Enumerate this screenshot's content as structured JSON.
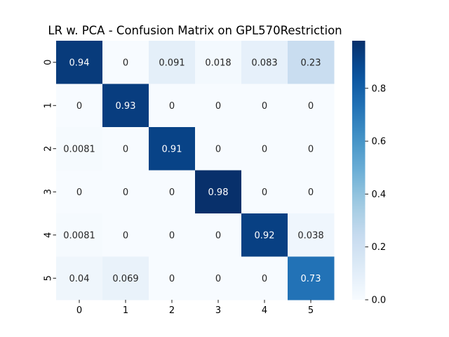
{
  "chart_data": {
    "type": "heatmap",
    "title": "LR w. PCA - Confusion Matrix on GPL570Restriction",
    "xlabel": "",
    "ylabel": "",
    "x_categories": [
      "0",
      "1",
      "2",
      "3",
      "4",
      "5"
    ],
    "y_categories": [
      "0",
      "1",
      "2",
      "3",
      "4",
      "5"
    ],
    "values": [
      [
        0.94,
        0,
        0.091,
        0.018,
        0.083,
        0.23
      ],
      [
        0,
        0.93,
        0,
        0,
        0,
        0
      ],
      [
        0.0081,
        0,
        0.91,
        0,
        0,
        0
      ],
      [
        0,
        0,
        0,
        0.98,
        0,
        0
      ],
      [
        0.0081,
        0,
        0,
        0,
        0.92,
        0.038
      ],
      [
        0.04,
        0.069,
        0,
        0,
        0,
        0.73
      ]
    ],
    "cell_labels": [
      [
        "0.94",
        "0",
        "0.091",
        "0.018",
        "0.083",
        "0.23"
      ],
      [
        "0",
        "0.93",
        "0",
        "0",
        "0",
        "0"
      ],
      [
        "0.0081",
        "0",
        "0.91",
        "0",
        "0",
        "0"
      ],
      [
        "0",
        "0",
        "0",
        "0.98",
        "0",
        "0"
      ],
      [
        "0.0081",
        "0",
        "0",
        "0",
        "0.92",
        "0.038"
      ],
      [
        "0.04",
        "0.069",
        "0",
        "0",
        "0",
        "0.73"
      ]
    ],
    "colorbar": {
      "range": [
        0,
        0.98
      ],
      "ticks": [
        0.0,
        0.2,
        0.4,
        0.6,
        0.8
      ],
      "tick_labels": [
        "0.0",
        "0.2",
        "0.4",
        "0.6",
        "0.8"
      ],
      "colormap": "Blues"
    },
    "grid": false,
    "legend": "colorbar-right"
  }
}
